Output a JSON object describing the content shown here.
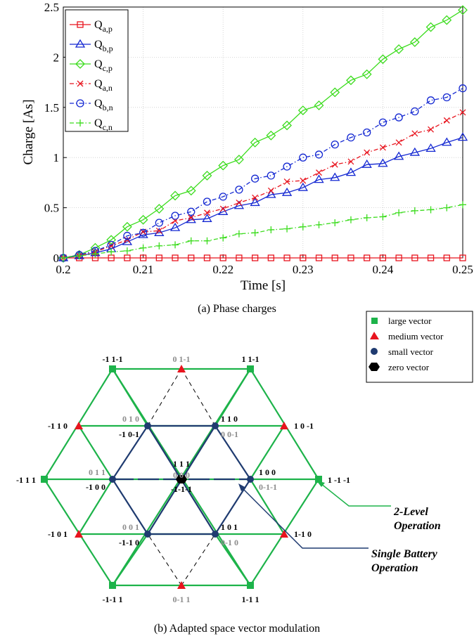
{
  "caption_a": "(a) Phase charges",
  "caption_b": "(b) Adapted space vector modulation",
  "chart_data": {
    "type": "line",
    "xlabel": "Time [s]",
    "ylabel": "Charge [As]",
    "xlim": [
      0.2,
      0.25
    ],
    "ylim": [
      0,
      2.5
    ],
    "xticks": [
      "0.2",
      "0.21",
      "0.22",
      "0.23",
      "0.24",
      "0.25"
    ],
    "yticks": [
      "0",
      "0.5",
      "1",
      "1.5",
      "2",
      "2.5"
    ],
    "grid": true,
    "legend_position": "top-left",
    "x": [
      0.2,
      0.202,
      0.204,
      0.206,
      0.208,
      0.21,
      0.212,
      0.214,
      0.216,
      0.218,
      0.22,
      0.222,
      0.224,
      0.226,
      0.228,
      0.23,
      0.232,
      0.234,
      0.236,
      0.238,
      0.24,
      0.242,
      0.244,
      0.246,
      0.248,
      0.25
    ],
    "series": [
      {
        "name": "Q",
        "sub": "a,p",
        "color": "#e8141e",
        "marker": "square",
        "dash": "solid",
        "values": [
          0,
          0,
          0,
          0,
          0,
          0,
          0,
          0,
          0,
          0,
          0,
          0,
          0,
          0,
          0,
          0,
          0,
          0,
          0,
          0,
          0,
          0,
          0,
          0,
          0,
          0
        ]
      },
      {
        "name": "Q",
        "sub": "b,p",
        "color": "#1428d2",
        "marker": "triangle",
        "dash": "solid",
        "values": [
          0,
          0.02,
          0.05,
          0.09,
          0.16,
          0.23,
          0.25,
          0.3,
          0.38,
          0.39,
          0.46,
          0.52,
          0.55,
          0.63,
          0.65,
          0.7,
          0.78,
          0.8,
          0.85,
          0.93,
          0.94,
          1.01,
          1.05,
          1.09,
          1.15,
          1.2
        ]
      },
      {
        "name": "Q",
        "sub": "c,p",
        "color": "#3cdc1e",
        "marker": "diamond",
        "dash": "solid",
        "values": [
          0,
          0.03,
          0.1,
          0.18,
          0.31,
          0.38,
          0.49,
          0.62,
          0.67,
          0.82,
          0.92,
          0.98,
          1.15,
          1.22,
          1.32,
          1.47,
          1.52,
          1.65,
          1.77,
          1.83,
          1.98,
          2.08,
          2.15,
          2.3,
          2.37,
          2.47
        ]
      },
      {
        "name": "Q",
        "sub": "a,n",
        "color": "#e8141e",
        "marker": "x",
        "dash": "dashdot",
        "values": [
          0,
          0.02,
          0.06,
          0.12,
          0.18,
          0.26,
          0.27,
          0.37,
          0.4,
          0.45,
          0.49,
          0.55,
          0.6,
          0.67,
          0.76,
          0.77,
          0.85,
          0.93,
          0.96,
          1.05,
          1.1,
          1.15,
          1.24,
          1.28,
          1.37,
          1.45
        ]
      },
      {
        "name": "Q",
        "sub": "b,n",
        "color": "#1428d2",
        "marker": "circle",
        "dash": "dashdot",
        "values": [
          0,
          0.03,
          0.07,
          0.13,
          0.22,
          0.25,
          0.35,
          0.42,
          0.46,
          0.56,
          0.61,
          0.68,
          0.79,
          0.82,
          0.91,
          1.0,
          1.03,
          1.13,
          1.2,
          1.25,
          1.35,
          1.4,
          1.46,
          1.57,
          1.6,
          1.69
        ]
      },
      {
        "name": "Q",
        "sub": "c,n",
        "color": "#3cdc1e",
        "marker": "plus",
        "dash": "dashdot",
        "values": [
          0,
          0.02,
          0.04,
          0.06,
          0.07,
          0.1,
          0.12,
          0.13,
          0.17,
          0.17,
          0.2,
          0.24,
          0.25,
          0.28,
          0.29,
          0.31,
          0.33,
          0.35,
          0.38,
          0.4,
          0.41,
          0.45,
          0.47,
          0.48,
          0.5,
          0.53
        ]
      }
    ]
  },
  "diagram": {
    "legend": [
      {
        "label": "large vector",
        "marker": "square",
        "color": "#1db34a"
      },
      {
        "label": "medium vector",
        "marker": "triangle",
        "color": "#e8141e"
      },
      {
        "label": "small vector",
        "marker": "circle",
        "color": "#1f3b70"
      },
      {
        "label": "zero vector",
        "marker": "hexagon",
        "color": "#000000"
      }
    ],
    "vertex_labels": {
      "large_top_left": "-1 1-1",
      "large_top_right": "1 1-1",
      "large_left": "-1  1  1",
      "large_right": "1 -1 -1",
      "large_bottom_left": "-1-1 1",
      "large_bottom_right": "1-1 1",
      "medium_top": "0 1-1",
      "medium_upper_left": "-1 1 0",
      "medium_upper_right": "1 0 -1",
      "medium_lower_left": "-1 0 1",
      "medium_lower_right": "1-1 0",
      "medium_bottom": "0-1 1",
      "small_ul_gray": "0 1 0",
      "small_ul_black": "-1 0-1",
      "small_ur_black": "1 1 0",
      "small_ur_gray": "0 0-1",
      "small_l_gray": "0 1 1",
      "small_l_black": "-1 0 0",
      "small_r_black": "1 0 0",
      "small_r_gray": "0-1-1",
      "small_ll_gray": "0 0 1",
      "small_ll_black": "-1-1 0",
      "small_lr_black": "1 0 1",
      "small_lr_gray": "0-1 0",
      "zero_top": "1 1 1",
      "zero_mid": "0 0 0",
      "zero_bottom": "-1-1-1"
    },
    "annotation_2level_line1": "2-Level",
    "annotation_2level_line2": "Operation",
    "annotation_single_line1": "Single Battery",
    "annotation_single_line2": "Operation",
    "colors": {
      "large": "#1db34a",
      "medium": "#e8141e",
      "small": "#1f3b70",
      "zero": "#000000",
      "gray_label": "#8c8c8c"
    }
  }
}
